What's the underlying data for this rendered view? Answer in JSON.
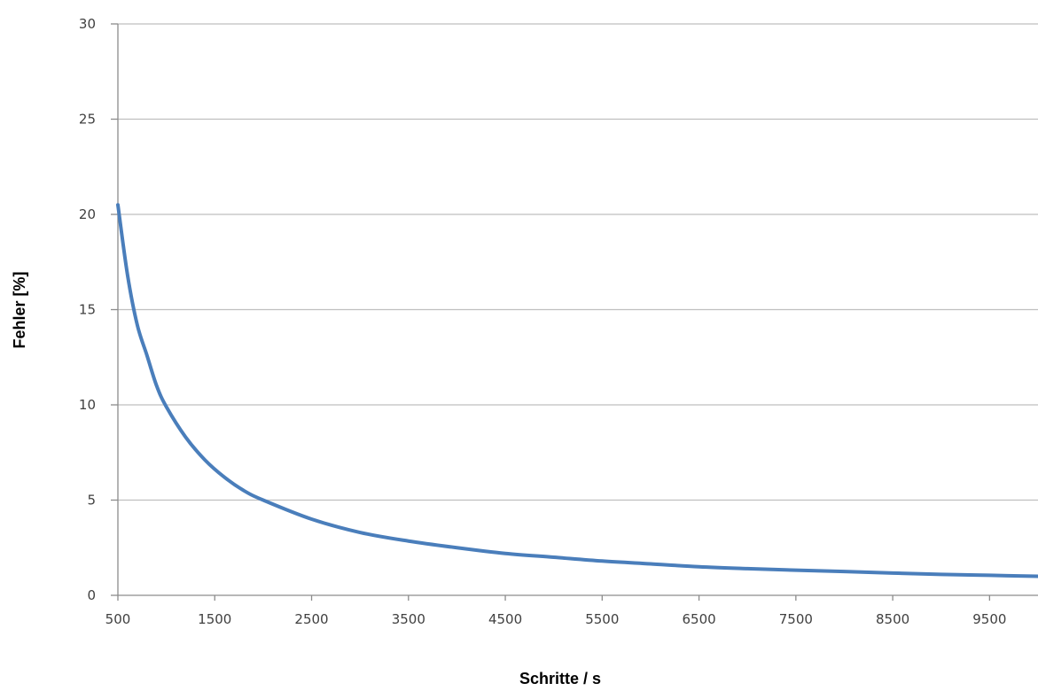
{
  "chart_data": {
    "type": "line",
    "title": "",
    "xlabel": "Schritte / s",
    "ylabel": "Fehler [%]",
    "xlim": [
      500,
      10000
    ],
    "ylim": [
      0,
      30
    ],
    "x_ticks": [
      500,
      1500,
      2500,
      3500,
      4500,
      5500,
      6500,
      7500,
      8500,
      9500
    ],
    "y_ticks": [
      0,
      5,
      10,
      15,
      20,
      25,
      30
    ],
    "grid": "horizontal",
    "legend": "none",
    "series": [
      {
        "color": "#4a7ebb",
        "x": [
          500,
          600,
          700,
          800,
          900,
          1000,
          1200,
          1400,
          1600,
          1800,
          2000,
          2500,
          3000,
          3500,
          4000,
          4500,
          5000,
          5500,
          6000,
          6500,
          7000,
          7500,
          8000,
          8500,
          9000,
          9500,
          10000
        ],
        "y": [
          20.5,
          16.8,
          14.2,
          12.6,
          11.0,
          9.9,
          8.3,
          7.1,
          6.2,
          5.5,
          5.0,
          4.0,
          3.3,
          2.85,
          2.5,
          2.2,
          2.0,
          1.8,
          1.65,
          1.5,
          1.4,
          1.32,
          1.25,
          1.17,
          1.1,
          1.05,
          1.0
        ]
      }
    ]
  }
}
